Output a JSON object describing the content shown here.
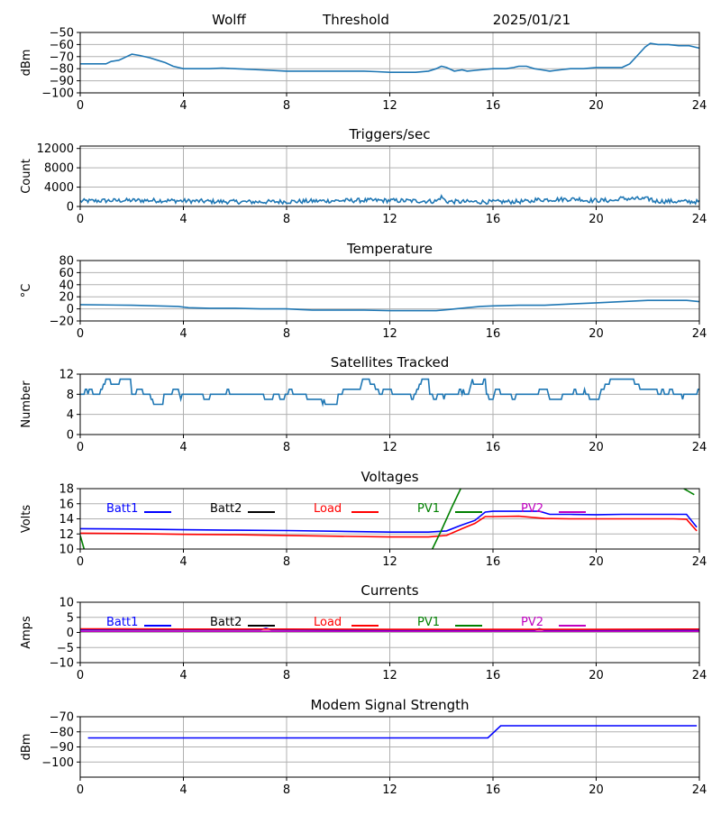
{
  "header": {
    "station": "Wolff",
    "mode": "Threshold",
    "date": "2025/01/21"
  },
  "chart_data": [
    {
      "id": "threshold",
      "type": "line",
      "title": "",
      "ylabel": "dBm",
      "xlim": [
        0,
        24
      ],
      "ylim": [
        -100,
        -50
      ],
      "yticks": [
        -100,
        -90,
        -80,
        -70,
        -60,
        -50
      ],
      "xticks": [
        0,
        4,
        8,
        12,
        16,
        20,
        24
      ],
      "grid": true,
      "series": [
        {
          "color": "#1f77b4",
          "x": [
            0,
            0.5,
            1.0,
            1.2,
            1.5,
            1.8,
            2.0,
            2.3,
            2.7,
            3.0,
            3.3,
            3.6,
            4.0,
            4.5,
            5.0,
            5.5,
            6.0,
            7.0,
            8.0,
            9.0,
            10.0,
            11.0,
            11.5,
            12.0,
            12.5,
            13.0,
            13.5,
            13.8,
            14.0,
            14.2,
            14.5,
            14.8,
            15.0,
            15.5,
            16.0,
            16.5,
            16.8,
            17.0,
            17.3,
            17.6,
            17.9,
            18.2,
            18.6,
            19.0,
            19.5,
            20.0,
            20.3,
            20.6,
            21.0,
            21.3,
            21.6,
            21.9,
            22.1,
            22.4,
            22.8,
            23.2,
            23.6,
            24.0
          ],
          "y": [
            -76,
            -76,
            -76,
            -74,
            -73,
            -70,
            -68,
            -69,
            -71,
            -73,
            -75,
            -78,
            -80,
            -80,
            -80,
            -79.5,
            -80,
            -81,
            -82,
            -82,
            -82,
            -82,
            -82.5,
            -83,
            -83,
            -83,
            -82,
            -80,
            -78,
            -79,
            -82,
            -81,
            -82,
            -81,
            -80,
            -80,
            -79,
            -78,
            -78,
            -80,
            -81,
            -82,
            -81,
            -80,
            -80,
            -79,
            -79,
            -79,
            -79,
            -76,
            -69,
            -62,
            -59,
            -60,
            -60,
            -61,
            -61,
            -63
          ]
        }
      ]
    },
    {
      "id": "triggers",
      "type": "line",
      "title": "Triggers/sec",
      "ylabel": "Count",
      "xlim": [
        0,
        24
      ],
      "ylim": [
        0,
        12500
      ],
      "yticks": [
        0,
        4000,
        8000,
        12000
      ],
      "xticks": [
        0,
        4,
        8,
        12,
        16,
        20,
        24
      ],
      "grid": true,
      "series": [
        {
          "color": "#1f77b4",
          "x": [],
          "y": []
        }
      ]
    },
    {
      "id": "temperature",
      "type": "line",
      "title": "Temperature",
      "ylabel": "°C",
      "xlim": [
        0,
        24
      ],
      "ylim": [
        -20,
        80
      ],
      "yticks": [
        -20,
        0,
        20,
        40,
        60,
        80
      ],
      "xticks": [
        0,
        4,
        8,
        12,
        16,
        20,
        24
      ],
      "grid": true,
      "series": [
        {
          "color": "#1f77b4",
          "x": [
            0,
            2,
            3,
            3.8,
            4.2,
            5,
            6,
            7,
            8,
            8.5,
            9,
            10,
            11,
            12,
            13,
            13.8,
            14.3,
            15,
            15.5,
            16,
            17,
            18,
            19,
            20,
            21,
            22,
            23,
            23.5,
            24
          ],
          "y": [
            7,
            6,
            5,
            4,
            2,
            1,
            1,
            0,
            0,
            -1,
            -2,
            -2,
            -2,
            -3,
            -3,
            -3,
            -1,
            2,
            4,
            5,
            6,
            6,
            8,
            10,
            12,
            14,
            14,
            14,
            12
          ]
        }
      ]
    },
    {
      "id": "satellites",
      "type": "line",
      "title": "Satellites Tracked",
      "ylabel": "Number",
      "xlim": [
        0,
        24
      ],
      "ylim": [
        0,
        12
      ],
      "yticks": [
        0,
        4,
        8,
        12
      ],
      "xticks": [
        0,
        4,
        8,
        12,
        16,
        20,
        24
      ],
      "grid": true,
      "series": [
        {
          "color": "#1f77b4",
          "x": [],
          "y": []
        }
      ]
    },
    {
      "id": "voltages",
      "type": "line",
      "title": "Voltages",
      "ylabel": "Volts",
      "xlim": [
        0,
        24
      ],
      "ylim": [
        10,
        18
      ],
      "yticks": [
        10,
        12,
        14,
        16,
        18
      ],
      "xticks": [
        0,
        4,
        8,
        12,
        16,
        20,
        24
      ],
      "grid": true,
      "legend": [
        "Batt1",
        "Batt2",
        "Load",
        "PV1",
        "PV2"
      ],
      "series": [
        {
          "name": "Batt1",
          "color": "#0000ff",
          "x": [
            0,
            2,
            4,
            6,
            8,
            10,
            12,
            13.5,
            14.2,
            14.8,
            15.3,
            15.7,
            16,
            17,
            17.8,
            18.2,
            19,
            20,
            21,
            22,
            23,
            23.5,
            23.9
          ],
          "y": [
            12.7,
            12.65,
            12.55,
            12.5,
            12.45,
            12.35,
            12.25,
            12.25,
            12.4,
            13.2,
            13.8,
            14.9,
            15.0,
            15.0,
            15.0,
            14.6,
            14.6,
            14.55,
            14.6,
            14.6,
            14.6,
            14.6,
            12.9
          ]
        },
        {
          "name": "Load",
          "color": "#ff0000",
          "x": [
            0,
            2,
            4,
            6,
            8,
            10,
            12,
            13.5,
            14.2,
            14.8,
            15.3,
            15.7,
            16,
            17,
            18,
            19,
            20,
            21,
            22,
            23,
            23.5,
            23.9
          ],
          "y": [
            12.1,
            12.05,
            11.95,
            11.9,
            11.8,
            11.7,
            11.6,
            11.6,
            11.8,
            12.7,
            13.4,
            14.3,
            14.3,
            14.35,
            14.05,
            14.0,
            14.0,
            14.0,
            14.0,
            14.0,
            13.95,
            12.4
          ]
        },
        {
          "name": "PV1",
          "color": "#008000",
          "x": [
            0,
            0.15,
            null,
            13.65,
            14.0,
            14.4,
            14.75,
            null,
            23.4,
            23.8
          ],
          "y": [
            11.8,
            10.0,
            null,
            10.0,
            12.5,
            15.5,
            18.0,
            null,
            18.0,
            17.2
          ]
        }
      ]
    },
    {
      "id": "currents",
      "type": "line",
      "title": "Currents",
      "ylabel": "Amps",
      "xlim": [
        0,
        24
      ],
      "ylim": [
        -10,
        10
      ],
      "yticks": [
        -10,
        -5,
        0,
        5,
        10
      ],
      "xticks": [
        0,
        4,
        8,
        12,
        16,
        20,
        24
      ],
      "grid": true,
      "legend": [
        "Batt1",
        "Batt2",
        "Load",
        "PV1",
        "PV2"
      ],
      "series": [
        {
          "name": "Batt1",
          "color": "#0000ff",
          "x": [
            0,
            7.0,
            7.2,
            7.4,
            12,
            17.6,
            17.8,
            18.0,
            24
          ],
          "y": [
            0.9,
            0.9,
            1.4,
            0.9,
            0.8,
            0.8,
            1.2,
            0.8,
            0.8
          ]
        },
        {
          "name": "Load",
          "color": "#ff0000",
          "x": [
            0,
            4,
            8,
            12,
            16,
            20,
            24
          ],
          "y": [
            1.2,
            1.1,
            1.1,
            1.0,
            1.0,
            1.0,
            1.1
          ]
        },
        {
          "name": "PV2",
          "color": "#c000c0",
          "x": [
            0,
            8,
            16,
            24
          ],
          "y": [
            0.4,
            0.4,
            0.4,
            0.4
          ]
        }
      ]
    },
    {
      "id": "modem",
      "type": "line",
      "title": "Modem Signal Strength",
      "ylabel": "dBm",
      "xlim": [
        0,
        24
      ],
      "ylim": [
        -110,
        -70
      ],
      "yticks": [
        -100,
        -90,
        -80,
        -70
      ],
      "xticks": [
        0,
        4,
        8,
        12,
        16,
        20,
        24
      ],
      "grid": true,
      "series": [
        {
          "color": "#0000ff",
          "x": [
            0.3,
            15.8,
            16.3,
            23.9
          ],
          "y": [
            -84,
            -84,
            -76,
            -76
          ]
        }
      ]
    }
  ],
  "legend_colors": {
    "Batt1": "#0000ff",
    "Batt2": "#000000",
    "Load": "#ff0000",
    "PV1": "#008000",
    "PV2": "#c000c0"
  }
}
